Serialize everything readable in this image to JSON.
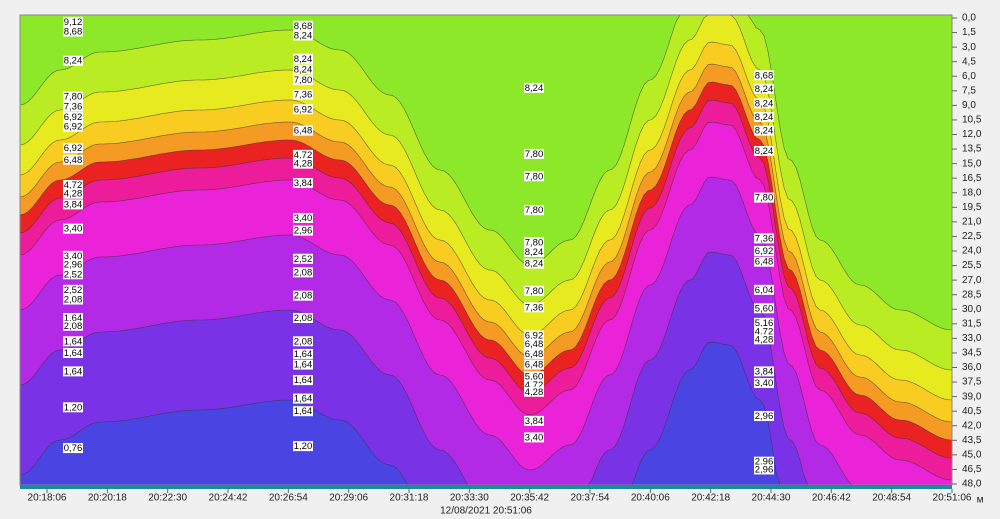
{
  "chart_data": {
    "type": "heatmap",
    "xticks": [
      "20:18:06",
      "20:20:18",
      "20:22:30",
      "20:24:42",
      "20:26:54",
      "20:29:06",
      "20:31:18",
      "20:33:30",
      "20:35:42",
      "20:37:54",
      "20:40:06",
      "20:42:18",
      "20:44:30",
      "20:46:42",
      "20:48:54",
      "20:51:06"
    ],
    "x_label": "12/08/2021 20:51:06",
    "y_unit": "м",
    "ylim": [
      0,
      48
    ],
    "yticks": [
      {
        "value": 0,
        "label": "0,0"
      },
      {
        "value": 1.5,
        "label": "1,5"
      },
      {
        "value": 3,
        "label": "3,0"
      },
      {
        "value": 4.5,
        "label": "4,5"
      },
      {
        "value": 6,
        "label": "6,0"
      },
      {
        "value": 7.5,
        "label": "7,5"
      },
      {
        "value": 9,
        "label": "9,0"
      },
      {
        "value": 10.5,
        "label": "10,5"
      },
      {
        "value": 12,
        "label": "12,0"
      },
      {
        "value": 13.5,
        "label": "13,5"
      },
      {
        "value": 15,
        "label": "15,0"
      },
      {
        "value": 16.5,
        "label": "16,5"
      },
      {
        "value": 18,
        "label": "18,0"
      },
      {
        "value": 19.5,
        "label": "19,5"
      },
      {
        "value": 21,
        "label": "21,0"
      },
      {
        "value": 22.5,
        "label": "22,5"
      },
      {
        "value": 24,
        "label": "24,0"
      },
      {
        "value": 25.5,
        "label": "25,5"
      },
      {
        "value": 27,
        "label": "27,0"
      },
      {
        "value": 28.5,
        "label": "28,5"
      },
      {
        "value": 30,
        "label": "30,0"
      },
      {
        "value": 31.5,
        "label": "31,5"
      },
      {
        "value": 33,
        "label": "33,0"
      },
      {
        "value": 34.5,
        "label": "34,5"
      },
      {
        "value": 36,
        "label": "36,0"
      },
      {
        "value": 37.5,
        "label": "37,5"
      },
      {
        "value": 39,
        "label": "39,0"
      },
      {
        "value": 40.5,
        "label": "40,5"
      },
      {
        "value": 42,
        "label": "42,0"
      },
      {
        "value": 43.5,
        "label": "43,5"
      },
      {
        "value": 45,
        "label": "45,0"
      },
      {
        "value": 46.5,
        "label": "46,5"
      },
      {
        "value": 48,
        "label": "48,0"
      }
    ],
    "contour_columns": [
      {
        "labels": [
          {
            "depth": 0.4,
            "value": 9.12,
            "label": "9,12"
          },
          {
            "depth": 1.4,
            "value": 8.68,
            "label": "8,68"
          },
          {
            "depth": 4.4,
            "value": 8.24,
            "label": "8,24"
          },
          {
            "depth": 8.1,
            "value": 7.8,
            "label": "7,80"
          },
          {
            "depth": 9.1,
            "value": 7.36,
            "label": "7,36"
          },
          {
            "depth": 10.2,
            "value": 6.92,
            "label": "6,92"
          },
          {
            "depth": 11.2,
            "value": 6.92,
            "label": "6,92"
          },
          {
            "depth": 13.4,
            "value": 6.92,
            "label": "6,92"
          },
          {
            "depth": 14.6,
            "value": 6.48,
            "label": "6,48"
          },
          {
            "depth": 17.2,
            "value": 4.72,
            "label": "4,72"
          },
          {
            "depth": 18.1,
            "value": 4.28,
            "label": "4,28"
          },
          {
            "depth": 19.2,
            "value": 3.84,
            "label": "3,84"
          },
          {
            "depth": 21.7,
            "value": 3.4,
            "label": "3,40"
          },
          {
            "depth": 24.5,
            "value": 3.4,
            "label": "3,40"
          },
          {
            "depth": 25.4,
            "value": 2.96,
            "label": "2,96"
          },
          {
            "depth": 26.4,
            "value": 2.52,
            "label": "2,52"
          },
          {
            "depth": 28,
            "value": 2.52,
            "label": "2,52"
          },
          {
            "depth": 29,
            "value": 2.08,
            "label": "2,08"
          },
          {
            "depth": 30.9,
            "value": 1.64,
            "label": "1,64"
          },
          {
            "depth": 31.7,
            "value": 2.08,
            "label": "2,08"
          },
          {
            "depth": 33.3,
            "value": 1.64,
            "label": "1,64"
          },
          {
            "depth": 34.5,
            "value": 1.64,
            "label": "1,64"
          },
          {
            "depth": 36.4,
            "value": 1.64,
            "label": "1,64"
          },
          {
            "depth": 40.1,
            "value": 1.2,
            "label": "1,20"
          },
          {
            "depth": 44.3,
            "value": 0.76,
            "label": "0,76"
          }
        ]
      },
      {
        "labels": [
          {
            "depth": 0.8,
            "value": 8.68,
            "label": "8,68"
          },
          {
            "depth": 1.8,
            "value": 8.24,
            "label": "8,24"
          },
          {
            "depth": 4.2,
            "value": 8.24,
            "label": "8,24"
          },
          {
            "depth": 5.3,
            "value": 8.24,
            "label": "8,24"
          },
          {
            "depth": 6.4,
            "value": 7.8,
            "label": "7,80"
          },
          {
            "depth": 7.9,
            "value": 7.36,
            "label": "7,36"
          },
          {
            "depth": 9.4,
            "value": 6.92,
            "label": "6,92"
          },
          {
            "depth": 11.6,
            "value": 6.48,
            "label": "6,48"
          },
          {
            "depth": 14.1,
            "value": 4.72,
            "label": "4,72"
          },
          {
            "depth": 15,
            "value": 4.28,
            "label": "4,28"
          },
          {
            "depth": 17,
            "value": 3.84,
            "label": "3,84"
          },
          {
            "depth": 20.6,
            "value": 3.4,
            "label": "3,40"
          },
          {
            "depth": 21.9,
            "value": 2.96,
            "label": "2,96"
          },
          {
            "depth": 24.8,
            "value": 2.52,
            "label": "2,52"
          },
          {
            "depth": 26.2,
            "value": 2.08,
            "label": "2,08"
          },
          {
            "depth": 28.6,
            "value": 2.08,
            "label": "2,08"
          },
          {
            "depth": 30.9,
            "value": 2.08,
            "label": "2,08"
          },
          {
            "depth": 33.3,
            "value": 2.08,
            "label": "2,08"
          },
          {
            "depth": 34.6,
            "value": 1.64,
            "label": "1,64"
          },
          {
            "depth": 35.7,
            "value": 1.64,
            "label": "1,64"
          },
          {
            "depth": 37.3,
            "value": 1.64,
            "label": "1,64"
          },
          {
            "depth": 39.2,
            "value": 1.64,
            "label": "1,64"
          },
          {
            "depth": 40.5,
            "value": 1.64,
            "label": "1,64"
          },
          {
            "depth": 44.1,
            "value": 1.2,
            "label": "1,20"
          }
        ]
      },
      {
        "labels": [
          {
            "depth": 7.2,
            "value": 8.24,
            "label": "8,24"
          },
          {
            "depth": 14,
            "value": 7.8,
            "label": "7,80"
          },
          {
            "depth": 16.3,
            "value": 7.8,
            "label": "7,80"
          },
          {
            "depth": 19.8,
            "value": 7.8,
            "label": "7,80"
          },
          {
            "depth": 23.1,
            "value": 7.8,
            "label": "7,80"
          },
          {
            "depth": 24.1,
            "value": 8.24,
            "label": "8,24"
          },
          {
            "depth": 25.3,
            "value": 8.24,
            "label": "8,24"
          },
          {
            "depth": 28.1,
            "value": 7.8,
            "label": "7,80"
          },
          {
            "depth": 29.8,
            "value": 7.36,
            "label": "7,36"
          },
          {
            "depth": 32.7,
            "value": 6.92,
            "label": "6,92"
          },
          {
            "depth": 33.6,
            "value": 6.48,
            "label": "6,48"
          },
          {
            "depth": 34.6,
            "value": 6.48,
            "label": "6,48"
          },
          {
            "depth": 35.7,
            "value": 6.48,
            "label": "6,48"
          },
          {
            "depth": 36.9,
            "value": 5.6,
            "label": "5,60"
          },
          {
            "depth": 37.8,
            "value": 4.72,
            "label": "4,72"
          },
          {
            "depth": 38.5,
            "value": 4.28,
            "label": "4,28"
          },
          {
            "depth": 41.5,
            "value": 3.84,
            "label": "3,84"
          },
          {
            "depth": 43.2,
            "value": 3.4,
            "label": "3,40"
          }
        ]
      },
      {
        "labels": [
          {
            "depth": 5.9,
            "value": 8.68,
            "label": "8,68"
          },
          {
            "depth": 7.3,
            "value": 8.24,
            "label": "8,24"
          },
          {
            "depth": 8.8,
            "value": 8.24,
            "label": "8,24"
          },
          {
            "depth": 10.2,
            "value": 8.24,
            "label": "8,24"
          },
          {
            "depth": 11.6,
            "value": 8.24,
            "label": "8,24"
          },
          {
            "depth": 13.7,
            "value": 8.24,
            "label": "8,24"
          },
          {
            "depth": 18.5,
            "value": 7.8,
            "label": "7,80"
          },
          {
            "depth": 22.7,
            "value": 7.36,
            "label": "7,36"
          },
          {
            "depth": 24,
            "value": 6.92,
            "label": "6,92"
          },
          {
            "depth": 25.1,
            "value": 6.48,
            "label": "6,48"
          },
          {
            "depth": 28,
            "value": 6.04,
            "label": "6,04"
          },
          {
            "depth": 29.9,
            "value": 5.6,
            "label": "5,60"
          },
          {
            "depth": 31.4,
            "value": 5.16,
            "label": "5,16"
          },
          {
            "depth": 32.3,
            "value": 4.72,
            "label": "4,72"
          },
          {
            "depth": 33.1,
            "value": 4.28,
            "label": "4,28"
          },
          {
            "depth": 36.4,
            "value": 3.84,
            "label": "3,84"
          },
          {
            "depth": 37.6,
            "value": 3.4,
            "label": "3,40"
          },
          {
            "depth": 41,
            "value": 2.96,
            "label": "2,96"
          },
          {
            "depth": 45.7,
            "value": 2.96,
            "label": "2,96"
          },
          {
            "depth": 46.5,
            "value": 2.96,
            "label": "2,96"
          }
        ]
      }
    ]
  }
}
